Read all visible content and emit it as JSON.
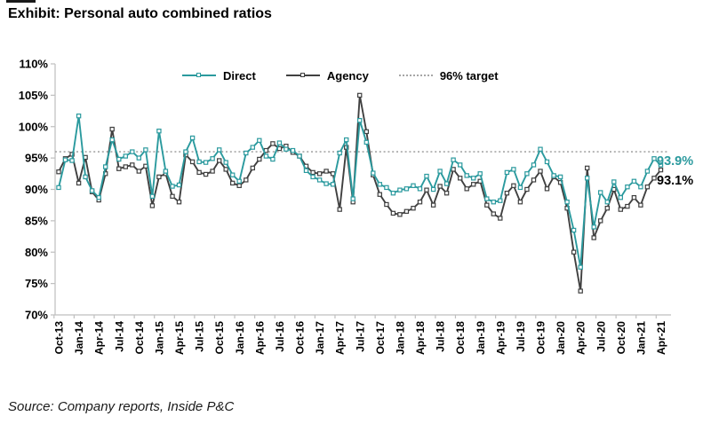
{
  "title": "Exhibit: Personal auto combined ratios",
  "source": "Source: Company reports, Inside P&C",
  "end_labels": {
    "direct": "93.9%",
    "agency": "93.1%"
  },
  "colors": {
    "direct": "#2b9a9e",
    "agency": "#404040",
    "target": "#a6a6a6",
    "axis": "#bfbfbf",
    "text": "#000000",
    "agency_end_label": "#000000"
  },
  "chart_data": {
    "type": "line",
    "title": "Exhibit: Personal auto combined ratios",
    "xlabel": "",
    "ylabel": "",
    "ylim": [
      70,
      110
    ],
    "yticks": [
      110,
      105,
      100,
      95,
      90,
      85,
      80,
      75,
      70
    ],
    "ytick_labels": [
      "110%",
      "105%",
      "100%",
      "95%",
      "90%",
      "85%",
      "80%",
      "75%",
      "70%"
    ],
    "grid": false,
    "legend_position": "top",
    "x": [
      "Oct-13",
      "Nov-13",
      "Dec-13",
      "Jan-14",
      "Feb-14",
      "Mar-14",
      "Apr-14",
      "May-14",
      "Jun-14",
      "Jul-14",
      "Aug-14",
      "Sep-14",
      "Oct-14",
      "Nov-14",
      "Dec-14",
      "Jan-15",
      "Feb-15",
      "Mar-15",
      "Apr-15",
      "May-15",
      "Jun-15",
      "Jul-15",
      "Aug-15",
      "Sep-15",
      "Oct-15",
      "Nov-15",
      "Dec-15",
      "Jan-16",
      "Feb-16",
      "Mar-16",
      "Apr-16",
      "May-16",
      "Jun-16",
      "Jul-16",
      "Aug-16",
      "Sep-16",
      "Oct-16",
      "Nov-16",
      "Dec-16",
      "Jan-17",
      "Feb-17",
      "Mar-17",
      "Apr-17",
      "May-17",
      "Jun-17",
      "Jul-17",
      "Aug-17",
      "Sep-17",
      "Oct-17",
      "Nov-17",
      "Dec-17",
      "Jan-18",
      "Feb-18",
      "Mar-18",
      "Apr-18",
      "May-18",
      "Jun-18",
      "Jul-18",
      "Aug-18",
      "Sep-18",
      "Oct-18",
      "Nov-18",
      "Dec-18",
      "Jan-19",
      "Feb-19",
      "Mar-19",
      "Apr-19",
      "May-19",
      "Jun-19",
      "Jul-19",
      "Aug-19",
      "Sep-19",
      "Oct-19",
      "Nov-19",
      "Dec-19",
      "Jan-20",
      "Feb-20",
      "Mar-20",
      "Apr-20",
      "May-20",
      "Jun-20",
      "Jul-20",
      "Aug-20",
      "Sep-20",
      "Oct-20",
      "Nov-20",
      "Dec-20",
      "Jan-21",
      "Feb-21",
      "Mar-21",
      "Apr-21"
    ],
    "x_tick_labels": [
      "Oct-13",
      "Jan-14",
      "Apr-14",
      "Jul-14",
      "Oct-14",
      "Jan-15",
      "Apr-15",
      "Jul-15",
      "Oct-15",
      "Jan-16",
      "Apr-16",
      "Jul-16",
      "Oct-16",
      "Jan-17",
      "Apr-17",
      "Jul-17",
      "Oct-17",
      "Jan-18",
      "Apr-18",
      "Jul-18",
      "Oct-18",
      "Jan-19",
      "Apr-19",
      "Jul-19",
      "Oct-19",
      "Jan-20",
      "Apr-20",
      "Jul-20",
      "Oct-20",
      "Jan-21",
      "Apr-21"
    ],
    "series": [
      {
        "name": "Direct",
        "color": "#2b9a9e",
        "end_label": "93.9%",
        "values": [
          90.3,
          94.7,
          94.6,
          101.7,
          92.0,
          89.8,
          88.7,
          93.6,
          97.9,
          94.8,
          95.3,
          96.0,
          95.0,
          96.3,
          88.9,
          99.3,
          92.9,
          90.5,
          90.7,
          96.0,
          98.2,
          94.4,
          94.3,
          94.9,
          96.3,
          94.3,
          92.3,
          91.3,
          95.8,
          96.7,
          97.8,
          95.3,
          94.8,
          97.4,
          96.4,
          96.2,
          95.3,
          93.0,
          92.0,
          91.5,
          90.9,
          90.8,
          95.8,
          97.9,
          88.5,
          101.0,
          97.5,
          92.6,
          90.8,
          90.3,
          89.4,
          89.9,
          90.1,
          90.6,
          90.1,
          92.1,
          90.0,
          92.9,
          90.9,
          94.7,
          93.9,
          92.2,
          91.8,
          92.5,
          88.5,
          88.0,
          88.2,
          92.7,
          93.2,
          90.3,
          92.5,
          93.9,
          96.4,
          94.4,
          92.2,
          92.0,
          88.0,
          83.5,
          77.6,
          91.8,
          84.0,
          89.5,
          88.0,
          91.2,
          88.7,
          90.4,
          91.3,
          90.4,
          92.9,
          94.9,
          93.9
        ]
      },
      {
        "name": "Agency",
        "color": "#404040",
        "end_label": "93.1%",
        "values": [
          92.8,
          94.9,
          95.6,
          91.0,
          95.1,
          89.6,
          88.3,
          92.5,
          99.6,
          93.3,
          93.6,
          93.9,
          92.9,
          93.7,
          87.4,
          92.0,
          92.5,
          88.9,
          88.0,
          95.5,
          94.4,
          92.7,
          92.4,
          92.9,
          94.6,
          93.2,
          91.0,
          90.6,
          91.5,
          93.4,
          94.8,
          96.2,
          97.3,
          96.5,
          96.9,
          95.9,
          95.3,
          93.7,
          92.7,
          92.5,
          92.9,
          92.5,
          86.8,
          96.7,
          88.0,
          105.0,
          99.2,
          92.3,
          89.2,
          87.6,
          86.2,
          86.0,
          86.5,
          87.0,
          88.0,
          89.9,
          87.5,
          90.5,
          89.4,
          93.2,
          91.8,
          90.1,
          90.8,
          91.3,
          87.5,
          86.1,
          85.4,
          89.4,
          90.6,
          88.0,
          90.0,
          91.5,
          92.9,
          90.1,
          92.0,
          91.1,
          87.0,
          80.0,
          73.8,
          93.4,
          82.3,
          85.0,
          87.0,
          90.0,
          86.8,
          87.3,
          88.7,
          87.5,
          90.4,
          91.8,
          93.1
        ]
      }
    ],
    "target_line": {
      "label": "96% target",
      "value": 96,
      "style": "dotted",
      "color": "#a6a6a6"
    },
    "legend": [
      {
        "label": "Direct",
        "color": "#2b9a9e",
        "style": "solid",
        "marker": true
      },
      {
        "label": "Agency",
        "color": "#404040",
        "style": "solid",
        "marker": true
      },
      {
        "label": "96% target",
        "color": "#a6a6a6",
        "style": "dotted",
        "marker": false
      }
    ]
  }
}
